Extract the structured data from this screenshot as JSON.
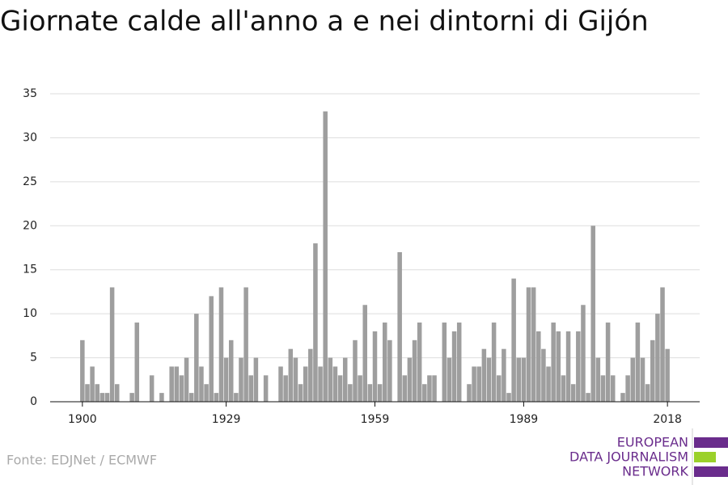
{
  "chart_data": {
    "type": "bar",
    "title": "Giornate calde all'anno a e nei dintorni di Gijón",
    "source": "Fonte: EDJNet / ECMWF",
    "logo": [
      "EUROPEAN",
      "DATA JOURNALISM",
      "NETWORK"
    ],
    "color": "#9e9e9e",
    "x": [
      1900,
      1901,
      1902,
      1903,
      1904,
      1905,
      1906,
      1907,
      1908,
      1909,
      1910,
      1911,
      1912,
      1913,
      1914,
      1915,
      1916,
      1917,
      1918,
      1919,
      1920,
      1921,
      1922,
      1923,
      1924,
      1925,
      1926,
      1927,
      1928,
      1929,
      1930,
      1931,
      1932,
      1933,
      1934,
      1935,
      1936,
      1937,
      1938,
      1939,
      1940,
      1941,
      1942,
      1943,
      1944,
      1945,
      1946,
      1947,
      1948,
      1949,
      1950,
      1951,
      1952,
      1953,
      1954,
      1955,
      1956,
      1957,
      1958,
      1959,
      1960,
      1961,
      1962,
      1963,
      1964,
      1965,
      1966,
      1967,
      1968,
      1969,
      1970,
      1971,
      1972,
      1973,
      1974,
      1975,
      1976,
      1977,
      1978,
      1979,
      1980,
      1981,
      1982,
      1983,
      1984,
      1985,
      1986,
      1987,
      1988,
      1989,
      1990,
      1991,
      1992,
      1993,
      1994,
      1995,
      1996,
      1997,
      1998,
      1999,
      2000,
      2001,
      2002,
      2003,
      2004,
      2005,
      2006,
      2007,
      2008,
      2009,
      2010,
      2011,
      2012,
      2013,
      2014,
      2015,
      2016,
      2017,
      2018
    ],
    "values": [
      7,
      2,
      4,
      2,
      1,
      1,
      13,
      2,
      0,
      0,
      1,
      9,
      0,
      0,
      3,
      0,
      1,
      0,
      4,
      4,
      3,
      5,
      1,
      10,
      4,
      2,
      12,
      1,
      13,
      5,
      7,
      1,
      5,
      13,
      3,
      5,
      0,
      3,
      0,
      0,
      4,
      3,
      6,
      5,
      2,
      4,
      6,
      18,
      4,
      33,
      5,
      4,
      3,
      5,
      2,
      7,
      3,
      11,
      2,
      8,
      2,
      9,
      7,
      0,
      17,
      3,
      5,
      7,
      9,
      2,
      3,
      3,
      0,
      9,
      5,
      8,
      9,
      0,
      2,
      4,
      4,
      6,
      5,
      9,
      3,
      6,
      1,
      14,
      5,
      5,
      13,
      13,
      8,
      6,
      4,
      9,
      8,
      3,
      8,
      2,
      8,
      11,
      1,
      20,
      5,
      3,
      9,
      3,
      0,
      1,
      3,
      5,
      9,
      5,
      2,
      7,
      10,
      13,
      6
    ],
    "xlim": [
      1893.5,
      2024.5
    ],
    "xticks": [
      1900,
      1929,
      1959,
      1989,
      2018
    ],
    "ylim": [
      0,
      35
    ],
    "yticks": [
      0,
      5,
      10,
      15,
      20,
      25,
      30,
      35
    ],
    "grid": true
  }
}
